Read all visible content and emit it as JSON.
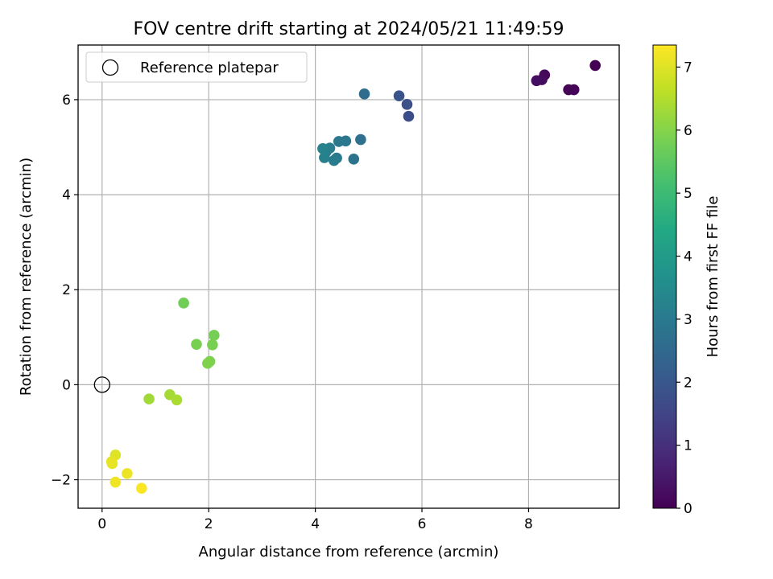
{
  "chart_data": {
    "type": "scatter",
    "title": "FOV centre drift starting at 2024/05/21 11:49:59",
    "xlabel": "Angular distance from reference (arcmin)",
    "ylabel": "Rotation from reference (arcmin)",
    "xlim": [
      -0.45,
      9.7
    ],
    "ylim": [
      -2.6,
      7.15
    ],
    "xticks": [
      0,
      2,
      4,
      6,
      8
    ],
    "yticks": [
      -2,
      0,
      2,
      4,
      6
    ],
    "xtick_labels": [
      "0",
      "2",
      "4",
      "6",
      "8"
    ],
    "ytick_labels": [
      "−2",
      "0",
      "2",
      "4",
      "6"
    ],
    "grid": true,
    "legend": {
      "placement": "top-left",
      "label": "Reference platepar"
    },
    "reference_point": {
      "x": 0,
      "y": 0
    },
    "colorbar": {
      "label": "Hours from first FF file",
      "colormap": "viridis",
      "range": [
        0,
        7.35
      ],
      "ticks": [
        0,
        1,
        2,
        3,
        4,
        5,
        6,
        7
      ],
      "tick_labels": [
        "0",
        "1",
        "2",
        "3",
        "4",
        "5",
        "6",
        "7"
      ]
    },
    "points": [
      {
        "x": 9.25,
        "y": 6.72,
        "hours": 0.0
      },
      {
        "x": 8.85,
        "y": 6.21,
        "hours": 0.05
      },
      {
        "x": 8.75,
        "y": 6.21,
        "hours": 0.1
      },
      {
        "x": 8.3,
        "y": 6.52,
        "hours": 0.15
      },
      {
        "x": 8.25,
        "y": 6.42,
        "hours": 0.2
      },
      {
        "x": 8.15,
        "y": 6.4,
        "hours": 0.25
      },
      {
        "x": 5.75,
        "y": 5.65,
        "hours": 1.75
      },
      {
        "x": 5.72,
        "y": 5.9,
        "hours": 1.8
      },
      {
        "x": 5.57,
        "y": 6.08,
        "hours": 1.9
      },
      {
        "x": 4.92,
        "y": 6.12,
        "hours": 2.6
      },
      {
        "x": 4.85,
        "y": 5.16,
        "hours": 2.7
      },
      {
        "x": 4.72,
        "y": 4.75,
        "hours": 2.8
      },
      {
        "x": 4.57,
        "y": 5.13,
        "hours": 2.9
      },
      {
        "x": 4.44,
        "y": 5.12,
        "hours": 2.95
      },
      {
        "x": 4.4,
        "y": 4.77,
        "hours": 3.0
      },
      {
        "x": 4.35,
        "y": 4.72,
        "hours": 3.05
      },
      {
        "x": 4.27,
        "y": 4.98,
        "hours": 3.1
      },
      {
        "x": 4.2,
        "y": 4.9,
        "hours": 3.15
      },
      {
        "x": 4.17,
        "y": 4.78,
        "hours": 3.2
      },
      {
        "x": 4.14,
        "y": 4.97,
        "hours": 3.25
      },
      {
        "x": 1.53,
        "y": 1.72,
        "hours": 5.75
      },
      {
        "x": 2.1,
        "y": 1.04,
        "hours": 5.8
      },
      {
        "x": 1.77,
        "y": 0.85,
        "hours": 5.85
      },
      {
        "x": 2.07,
        "y": 0.84,
        "hours": 5.85
      },
      {
        "x": 2.02,
        "y": 0.49,
        "hours": 5.9
      },
      {
        "x": 1.98,
        "y": 0.45,
        "hours": 5.95
      },
      {
        "x": 0.88,
        "y": -0.3,
        "hours": 6.3
      },
      {
        "x": 1.27,
        "y": -0.21,
        "hours": 6.35
      },
      {
        "x": 1.4,
        "y": -0.32,
        "hours": 6.4
      },
      {
        "x": 0.25,
        "y": -1.48,
        "hours": 7.0
      },
      {
        "x": 0.18,
        "y": -1.62,
        "hours": 7.05
      },
      {
        "x": 0.19,
        "y": -1.66,
        "hours": 7.1
      },
      {
        "x": 0.47,
        "y": -1.87,
        "hours": 7.15
      },
      {
        "x": 0.25,
        "y": -2.05,
        "hours": 7.2
      },
      {
        "x": 0.74,
        "y": -2.18,
        "hours": 7.3
      }
    ]
  }
}
